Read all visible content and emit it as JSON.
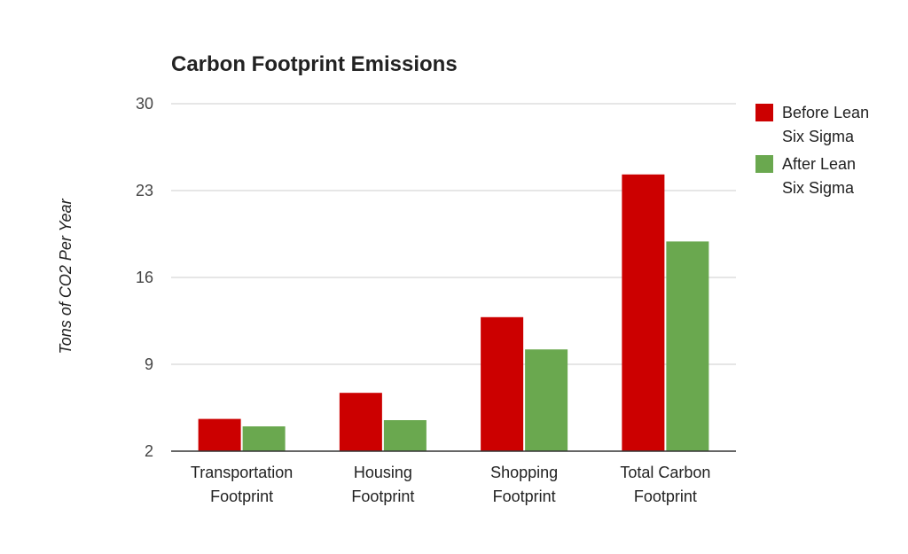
{
  "chart_data": {
    "type": "bar",
    "title": "Carbon Footprint Emissions",
    "xlabel": "",
    "ylabel": "Tons of CO2 Per Year",
    "ylim": [
      2,
      30
    ],
    "yticks": [
      2,
      9,
      16,
      23,
      30
    ],
    "grid": true,
    "legend_position": "right",
    "categories": [
      [
        "Transportation",
        "Footprint"
      ],
      [
        "Housing",
        "Footprint"
      ],
      [
        "Shopping",
        "Footprint"
      ],
      [
        "Total Carbon",
        "Footprint"
      ]
    ],
    "series": [
      {
        "name": [
          "Before Lean",
          "Six Sigma"
        ],
        "color": "#cc0000",
        "values": [
          4.6,
          6.7,
          12.8,
          24.3
        ]
      },
      {
        "name": [
          "After Lean",
          "Six Sigma"
        ],
        "color": "#6aa84f",
        "values": [
          4.0,
          4.5,
          10.2,
          18.9
        ]
      }
    ]
  }
}
